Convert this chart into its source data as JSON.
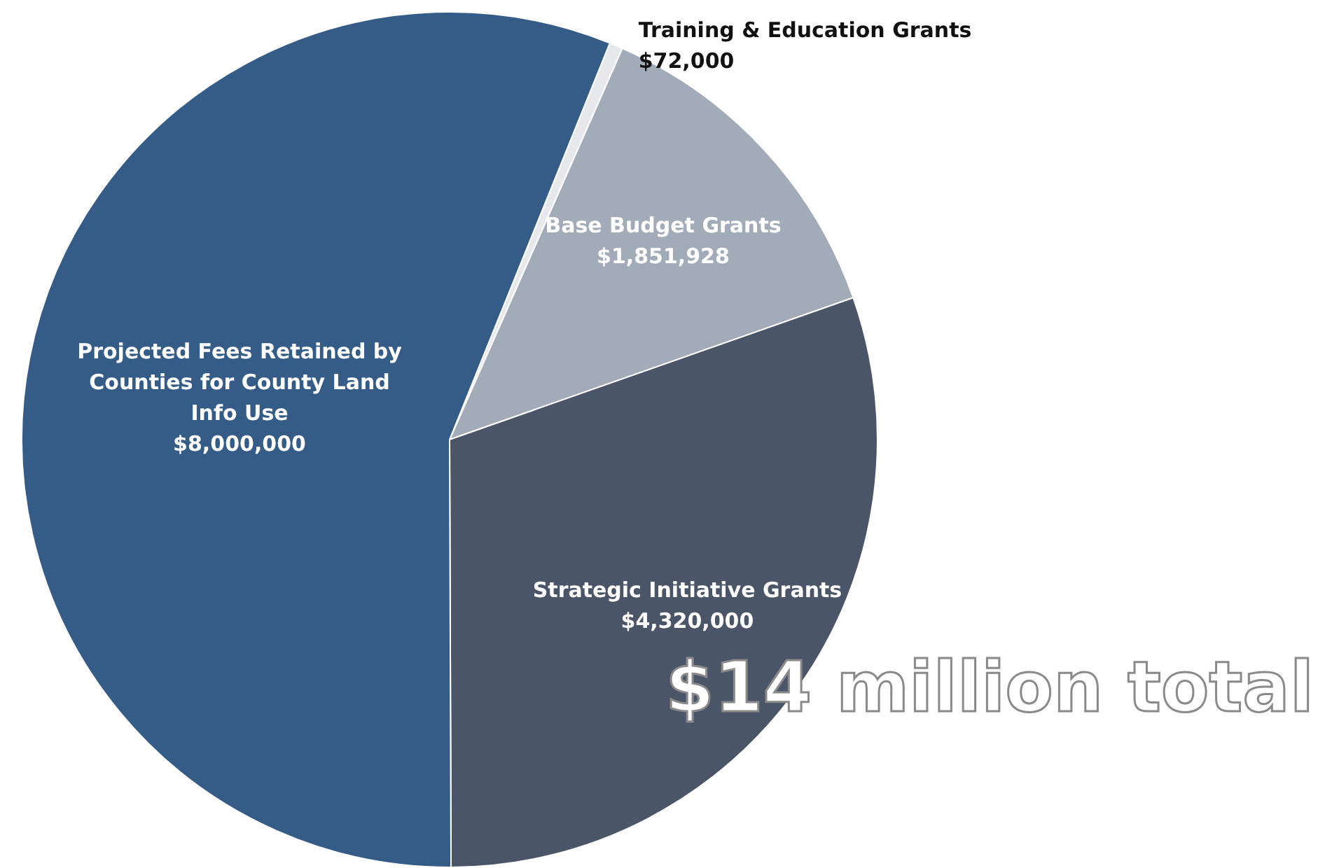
{
  "chart_data": {
    "type": "pie",
    "categories": [
      "Training & Education Grants",
      "Base Budget Grants",
      "Strategic Initiative Grants",
      "Projected Fees Retained by Counties for County Land Info Use"
    ],
    "values": [
      72000,
      1851928,
      4320000,
      8000000
    ],
    "value_labels": [
      "$72,000",
      "$1,851,928",
      "$4,320,000",
      "$8,000,000"
    ],
    "colors": [
      "#e6e8ec",
      "#a2abb8",
      "#4b5568",
      "#355c87"
    ],
    "legend": false,
    "annotations": [
      "$14 million total"
    ]
  }
}
